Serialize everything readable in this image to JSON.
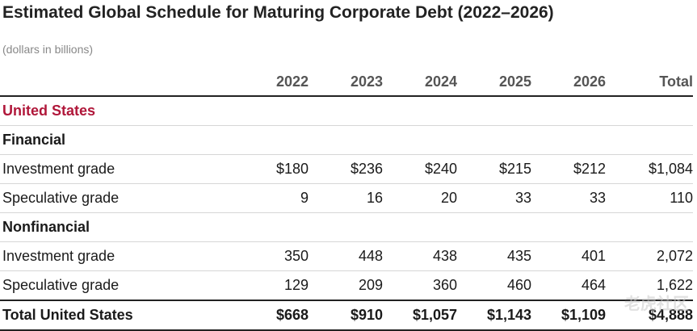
{
  "title": "Estimated Global Schedule for Maturing Corporate Debt (2022–2026)",
  "subtitle": "(dollars in billions)",
  "columns": [
    "",
    "2022",
    "2023",
    "2024",
    "2025",
    "2026",
    "Total"
  ],
  "rows": [
    {
      "type": "region",
      "label": "United States"
    },
    {
      "type": "group",
      "label": "Financial"
    },
    {
      "type": "data",
      "label": "Investment grade",
      "values": [
        "$180",
        "$236",
        "$240",
        "$215",
        "$212",
        "$1,084"
      ]
    },
    {
      "type": "data",
      "label": "Speculative grade",
      "values": [
        "9",
        "16",
        "20",
        "33",
        "33",
        "110"
      ]
    },
    {
      "type": "group",
      "label": "Nonfinancial"
    },
    {
      "type": "data",
      "label": "Investment grade",
      "values": [
        "350",
        "448",
        "438",
        "435",
        "401",
        "2,072"
      ]
    },
    {
      "type": "data",
      "label": "Speculative grade",
      "values": [
        "129",
        "209",
        "360",
        "460",
        "464",
        "1,622"
      ]
    },
    {
      "type": "total",
      "label": "Total United States",
      "values": [
        "$668",
        "$910",
        "$1,057",
        "$1,143",
        "$1,109",
        "$4,888"
      ]
    }
  ],
  "watermark": "老虎社区"
}
